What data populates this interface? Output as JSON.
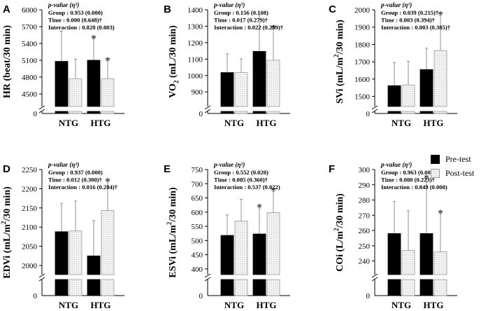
{
  "legend": {
    "pre": "Pre-test",
    "post": "Post-test"
  },
  "colors": {
    "pre": "#000000",
    "post": "#ececec"
  },
  "chart_data": [
    {
      "type": "bar",
      "panel": "A",
      "ylabel_main": "HR (beat/30 min)",
      "ylabel_sup": "",
      "ylabel_end": "",
      "categories": [
        "NTG",
        "HTG"
      ],
      "series": [
        {
          "name": "Pre-test",
          "values": [
            5080,
            5100
          ],
          "error_upper": [
            5620,
            5480
          ]
        },
        {
          "name": "Post-test",
          "values": [
            4770,
            4770
          ],
          "error_upper": [
            5120,
            5090
          ]
        }
      ],
      "significant": [
        [
          false,
          true
        ],
        [
          false,
          true
        ]
      ],
      "yticks": [
        "4500",
        "4800",
        "5100",
        "5400",
        "5700",
        "6000"
      ],
      "ylim": [
        4300,
        6000
      ],
      "break_zero": "0",
      "stats": {
        "head": "p-value (η²)",
        "lines": [
          "Group : 0.953 (0.000)",
          "Time : 0.000 (0.648)†",
          "Interaction : 0.820 (0.003)"
        ]
      }
    },
    {
      "type": "bar",
      "panel": "B",
      "ylabel_main": "VO",
      "ylabel_sup": "2",
      "ylabel_end": " (mL/30 min)",
      "ylabel_sup_is_sub": true,
      "categories": [
        "NTG",
        "HTG"
      ],
      "series": [
        {
          "name": "Pre-test",
          "values": [
            1018,
            1147
          ],
          "error_upper": [
            1132,
            1370
          ]
        },
        {
          "name": "Post-test",
          "values": [
            1018,
            1093
          ],
          "error_upper": [
            1102,
            1285
          ]
        }
      ],
      "significant": [
        [
          false,
          false
        ],
        [
          false,
          true
        ]
      ],
      "yticks": [
        "900",
        "1000",
        "1100",
        "1200",
        "1300",
        "1400"
      ],
      "ylim": [
        820,
        1400
      ],
      "break_zero": "0",
      "stats": {
        "head": "p-value (η²)",
        "lines": [
          "Group : 0.156 (0.108)",
          "Time : 0.017 (0.279)†",
          "Interaction : 0.022 (0.259)†"
        ]
      }
    },
    {
      "type": "bar",
      "panel": "C",
      "ylabel_main": "SVi (mL/m",
      "ylabel_sup": "2",
      "ylabel_end": "/30 min)",
      "categories": [
        "NTG",
        "HTG"
      ],
      "series": [
        {
          "name": "Pre-test",
          "values": [
            1562,
            1655
          ],
          "error_upper": [
            1695,
            1778
          ]
        },
        {
          "name": "Post-test",
          "values": [
            1565,
            1765
          ],
          "error_upper": [
            1703,
            1970
          ]
        }
      ],
      "significant": [
        [
          false,
          false
        ],
        [
          false,
          true
        ]
      ],
      "yticks": [
        "1500",
        "1600",
        "1700",
        "1800",
        "1900",
        "2000"
      ],
      "ylim": [
        1450,
        2000
      ],
      "break_zero": "0",
      "stats": {
        "head": "p-value (η²)",
        "lines": [
          "Group : 0.039 (0.215)†",
          "Time : 0.003 (0.394)†",
          "Interaction : 0.003 (0.385)†"
        ]
      }
    },
    {
      "type": "bar",
      "panel": "D",
      "ylabel_main": "EDVi (mL/m",
      "ylabel_sup": "2",
      "ylabel_end": "/30 min)",
      "categories": [
        "NTG",
        "HTG"
      ],
      "series": [
        {
          "name": "Pre-test",
          "values": [
            2088,
            2025
          ],
          "error_upper": [
            2162,
            2117
          ]
        },
        {
          "name": "Post-test",
          "values": [
            2090,
            2143
          ],
          "error_upper": [
            2168,
            2218
          ]
        }
      ],
      "significant": [
        [
          false,
          false
        ],
        [
          false,
          true
        ]
      ],
      "yticks": [
        "2000",
        "2050",
        "2100",
        "2150",
        "2200",
        "2250"
      ],
      "ylim": [
        1980,
        2250
      ],
      "break_zero": "0",
      "stats": {
        "head": "p-value (η²)",
        "lines": [
          "Group : 0.937 (0.000)",
          "Time : 0.012 (0.300)†",
          "Interaction : 0.016 (0.284)†"
        ]
      }
    },
    {
      "type": "bar",
      "panel": "E",
      "ylabel_main": "ESVi (mL/m",
      "ylabel_sup": "2",
      "ylabel_end": "/30 min)",
      "categories": [
        "NTG",
        "HTG"
      ],
      "series": [
        {
          "name": "Pre-test",
          "values": [
            518,
            523
          ],
          "error_upper": [
            590,
            615
          ]
        },
        {
          "name": "Post-test",
          "values": [
            568,
            598
          ],
          "error_upper": [
            645,
            673
          ]
        }
      ],
      "significant": [
        [
          false,
          true
        ],
        [
          false,
          true
        ]
      ],
      "yticks": [
        "400",
        "450",
        "500",
        "550",
        "600",
        "650",
        "700",
        "750"
      ],
      "ylim": [
        385,
        750
      ],
      "break_zero": "0",
      "stats": {
        "head": "p-value (η²)",
        "lines": [
          "Group : 0.552 (0.020)",
          "Time : 0.005 (0.360)†",
          "Interaction : 0.537 (0.022)"
        ]
      }
    },
    {
      "type": "bar",
      "panel": "F",
      "ylabel_main": "COi (L/m",
      "ylabel_sup": "2",
      "ylabel_end": "/30 min)",
      "categories": [
        "NTG",
        "HTG"
      ],
      "series": [
        {
          "name": "Pre-test",
          "values": [
            258,
            258
          ],
          "error_upper": [
            279,
            294
          ]
        },
        {
          "name": "Post-test",
          "values": [
            247,
            246
          ],
          "error_upper": [
            273,
            271
          ]
        }
      ],
      "significant": [
        [
          false,
          true
        ],
        [
          false,
          true
        ]
      ],
      "yticks": [
        "240",
        "250",
        "260",
        "270",
        "280",
        "290",
        "300"
      ],
      "ylim": [
        232,
        300
      ],
      "break_zero": "0",
      "stats": {
        "head": "p-value (η²)",
        "lines": [
          "Group : 0.963 (0.000)",
          "Time : 0.000 (0.223)†",
          "Interaction : 0.849 (0.000)"
        ]
      }
    }
  ]
}
